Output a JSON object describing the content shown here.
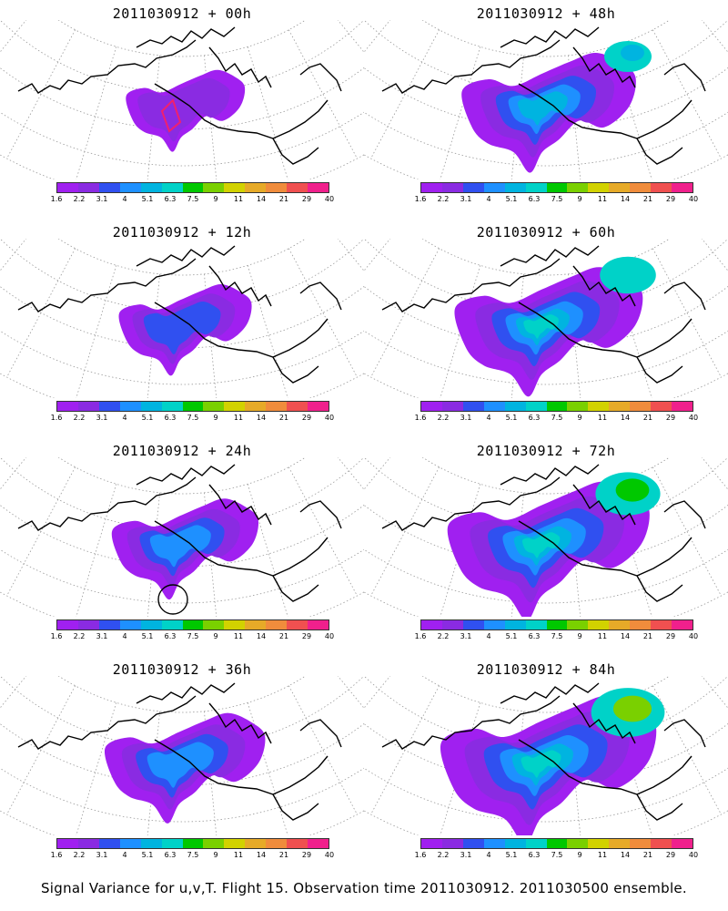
{
  "panels": [
    {
      "title": "2011030912 + 00h",
      "level": 1,
      "marker": "diamond"
    },
    {
      "title": "2011030912 + 48h",
      "level": 5,
      "marker": ""
    },
    {
      "title": "2011030912 + 12h",
      "level": 2,
      "marker": ""
    },
    {
      "title": "2011030912 + 60h",
      "level": 6,
      "marker": ""
    },
    {
      "title": "2011030912 + 24h",
      "level": 3,
      "marker": "circle"
    },
    {
      "title": "2011030912 + 72h",
      "level": 7,
      "marker": ""
    },
    {
      "title": "2011030912 + 36h",
      "level": 4,
      "marker": ""
    },
    {
      "title": "2011030912 + 84h",
      "level": 8,
      "marker": ""
    }
  ],
  "colorbar": {
    "colors": [
      "#a020f0",
      "#8a2be2",
      "#3050f0",
      "#1e90ff",
      "#00b4e0",
      "#00d2c8",
      "#00c800",
      "#7ad000",
      "#d2d200",
      "#e6aa28",
      "#f08c3c",
      "#f05050",
      "#f0208c"
    ],
    "ticks": [
      "1.6",
      "2.2",
      "3.1",
      "4",
      "5.1",
      "6.3",
      "7.5",
      "9",
      "11",
      "14",
      "21",
      "29",
      "40"
    ]
  },
  "footer": "Signal Variance for u,v,T. Flight 15. Observation time 2011030912. 2011030500 ensemble."
}
